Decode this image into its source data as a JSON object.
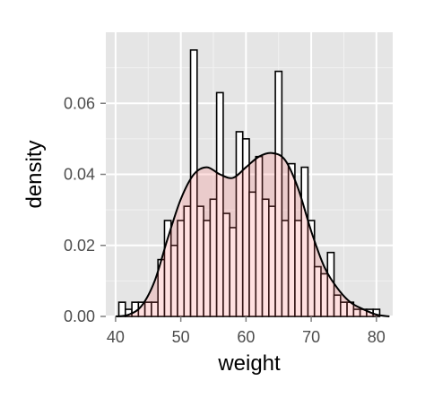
{
  "chart_data": {
    "type": "histogram",
    "xlabel": "weight",
    "ylabel": "density",
    "xlim": [
      38.5,
      82.5
    ],
    "ylim": [
      0,
      0.08
    ],
    "x_ticks": [
      40,
      50,
      60,
      70,
      80
    ],
    "y_ticks": [
      0.0,
      0.02,
      0.04,
      0.06
    ],
    "x_tick_labels": [
      "40",
      "50",
      "60",
      "70",
      "80"
    ],
    "y_tick_labels": [
      "0.00",
      "0.02",
      "0.04",
      "0.06"
    ],
    "grid": true,
    "bin_width": 1,
    "bins": [
      {
        "start": 40.5,
        "density": 0.004
      },
      {
        "start": 41.5,
        "density": 0.002
      },
      {
        "start": 42.5,
        "density": 0.004
      },
      {
        "start": 43.5,
        "density": 0.004
      },
      {
        "start": 44.5,
        "density": 0.004
      },
      {
        "start": 45.5,
        "density": 0.004
      },
      {
        "start": 46.5,
        "density": 0.016
      },
      {
        "start": 47.5,
        "density": 0.027
      },
      {
        "start": 48.5,
        "density": 0.02
      },
      {
        "start": 49.5,
        "density": 0.027
      },
      {
        "start": 50.5,
        "density": 0.031
      },
      {
        "start": 51.5,
        "density": 0.075
      },
      {
        "start": 52.5,
        "density": 0.031
      },
      {
        "start": 53.5,
        "density": 0.027
      },
      {
        "start": 54.5,
        "density": 0.033
      },
      {
        "start": 55.5,
        "density": 0.063
      },
      {
        "start": 56.5,
        "density": 0.029
      },
      {
        "start": 57.5,
        "density": 0.025
      },
      {
        "start": 58.5,
        "density": 0.052
      },
      {
        "start": 59.5,
        "density": 0.05
      },
      {
        "start": 60.5,
        "density": 0.035
      },
      {
        "start": 61.5,
        "density": 0.045
      },
      {
        "start": 62.5,
        "density": 0.033
      },
      {
        "start": 63.5,
        "density": 0.031
      },
      {
        "start": 64.5,
        "density": 0.069
      },
      {
        "start": 65.5,
        "density": 0.027
      },
      {
        "start": 66.5,
        "density": 0.043
      },
      {
        "start": 67.5,
        "density": 0.027
      },
      {
        "start": 68.5,
        "density": 0.042
      },
      {
        "start": 69.5,
        "density": 0.027
      },
      {
        "start": 70.5,
        "density": 0.014
      },
      {
        "start": 71.5,
        "density": 0.012
      },
      {
        "start": 72.5,
        "density": 0.018
      },
      {
        "start": 73.5,
        "density": 0.006
      },
      {
        "start": 74.5,
        "density": 0.004
      },
      {
        "start": 75.5,
        "density": 0.004
      },
      {
        "start": 76.5,
        "density": 0.002
      },
      {
        "start": 77.5,
        "density": 0.002
      },
      {
        "start": 78.5,
        "density": 0.002
      },
      {
        "start": 79.5,
        "density": 0.002
      }
    ],
    "density_curve": {
      "x": [
        40,
        42,
        44,
        46,
        48,
        50,
        52,
        54,
        56,
        58,
        60,
        62,
        64,
        66,
        68,
        70,
        72,
        74,
        76,
        78,
        80,
        82
      ],
      "y": [
        0.0,
        0.0005,
        0.003,
        0.01,
        0.022,
        0.033,
        0.04,
        0.042,
        0.04,
        0.039,
        0.042,
        0.045,
        0.046,
        0.044,
        0.036,
        0.024,
        0.014,
        0.008,
        0.004,
        0.002,
        0.0005,
        0.0
      ]
    },
    "colors": {
      "panel_background": "#e5e5e5",
      "grid_major": "#ffffff",
      "grid_minor": "#f2f2f2",
      "bar_fill": "#ffffff",
      "bar_stroke": "#000000",
      "density_fill": "#ff6666",
      "density_fill_opacity": 0.2,
      "density_stroke": "#000000",
      "tick_label": "#4d4d4d"
    }
  }
}
